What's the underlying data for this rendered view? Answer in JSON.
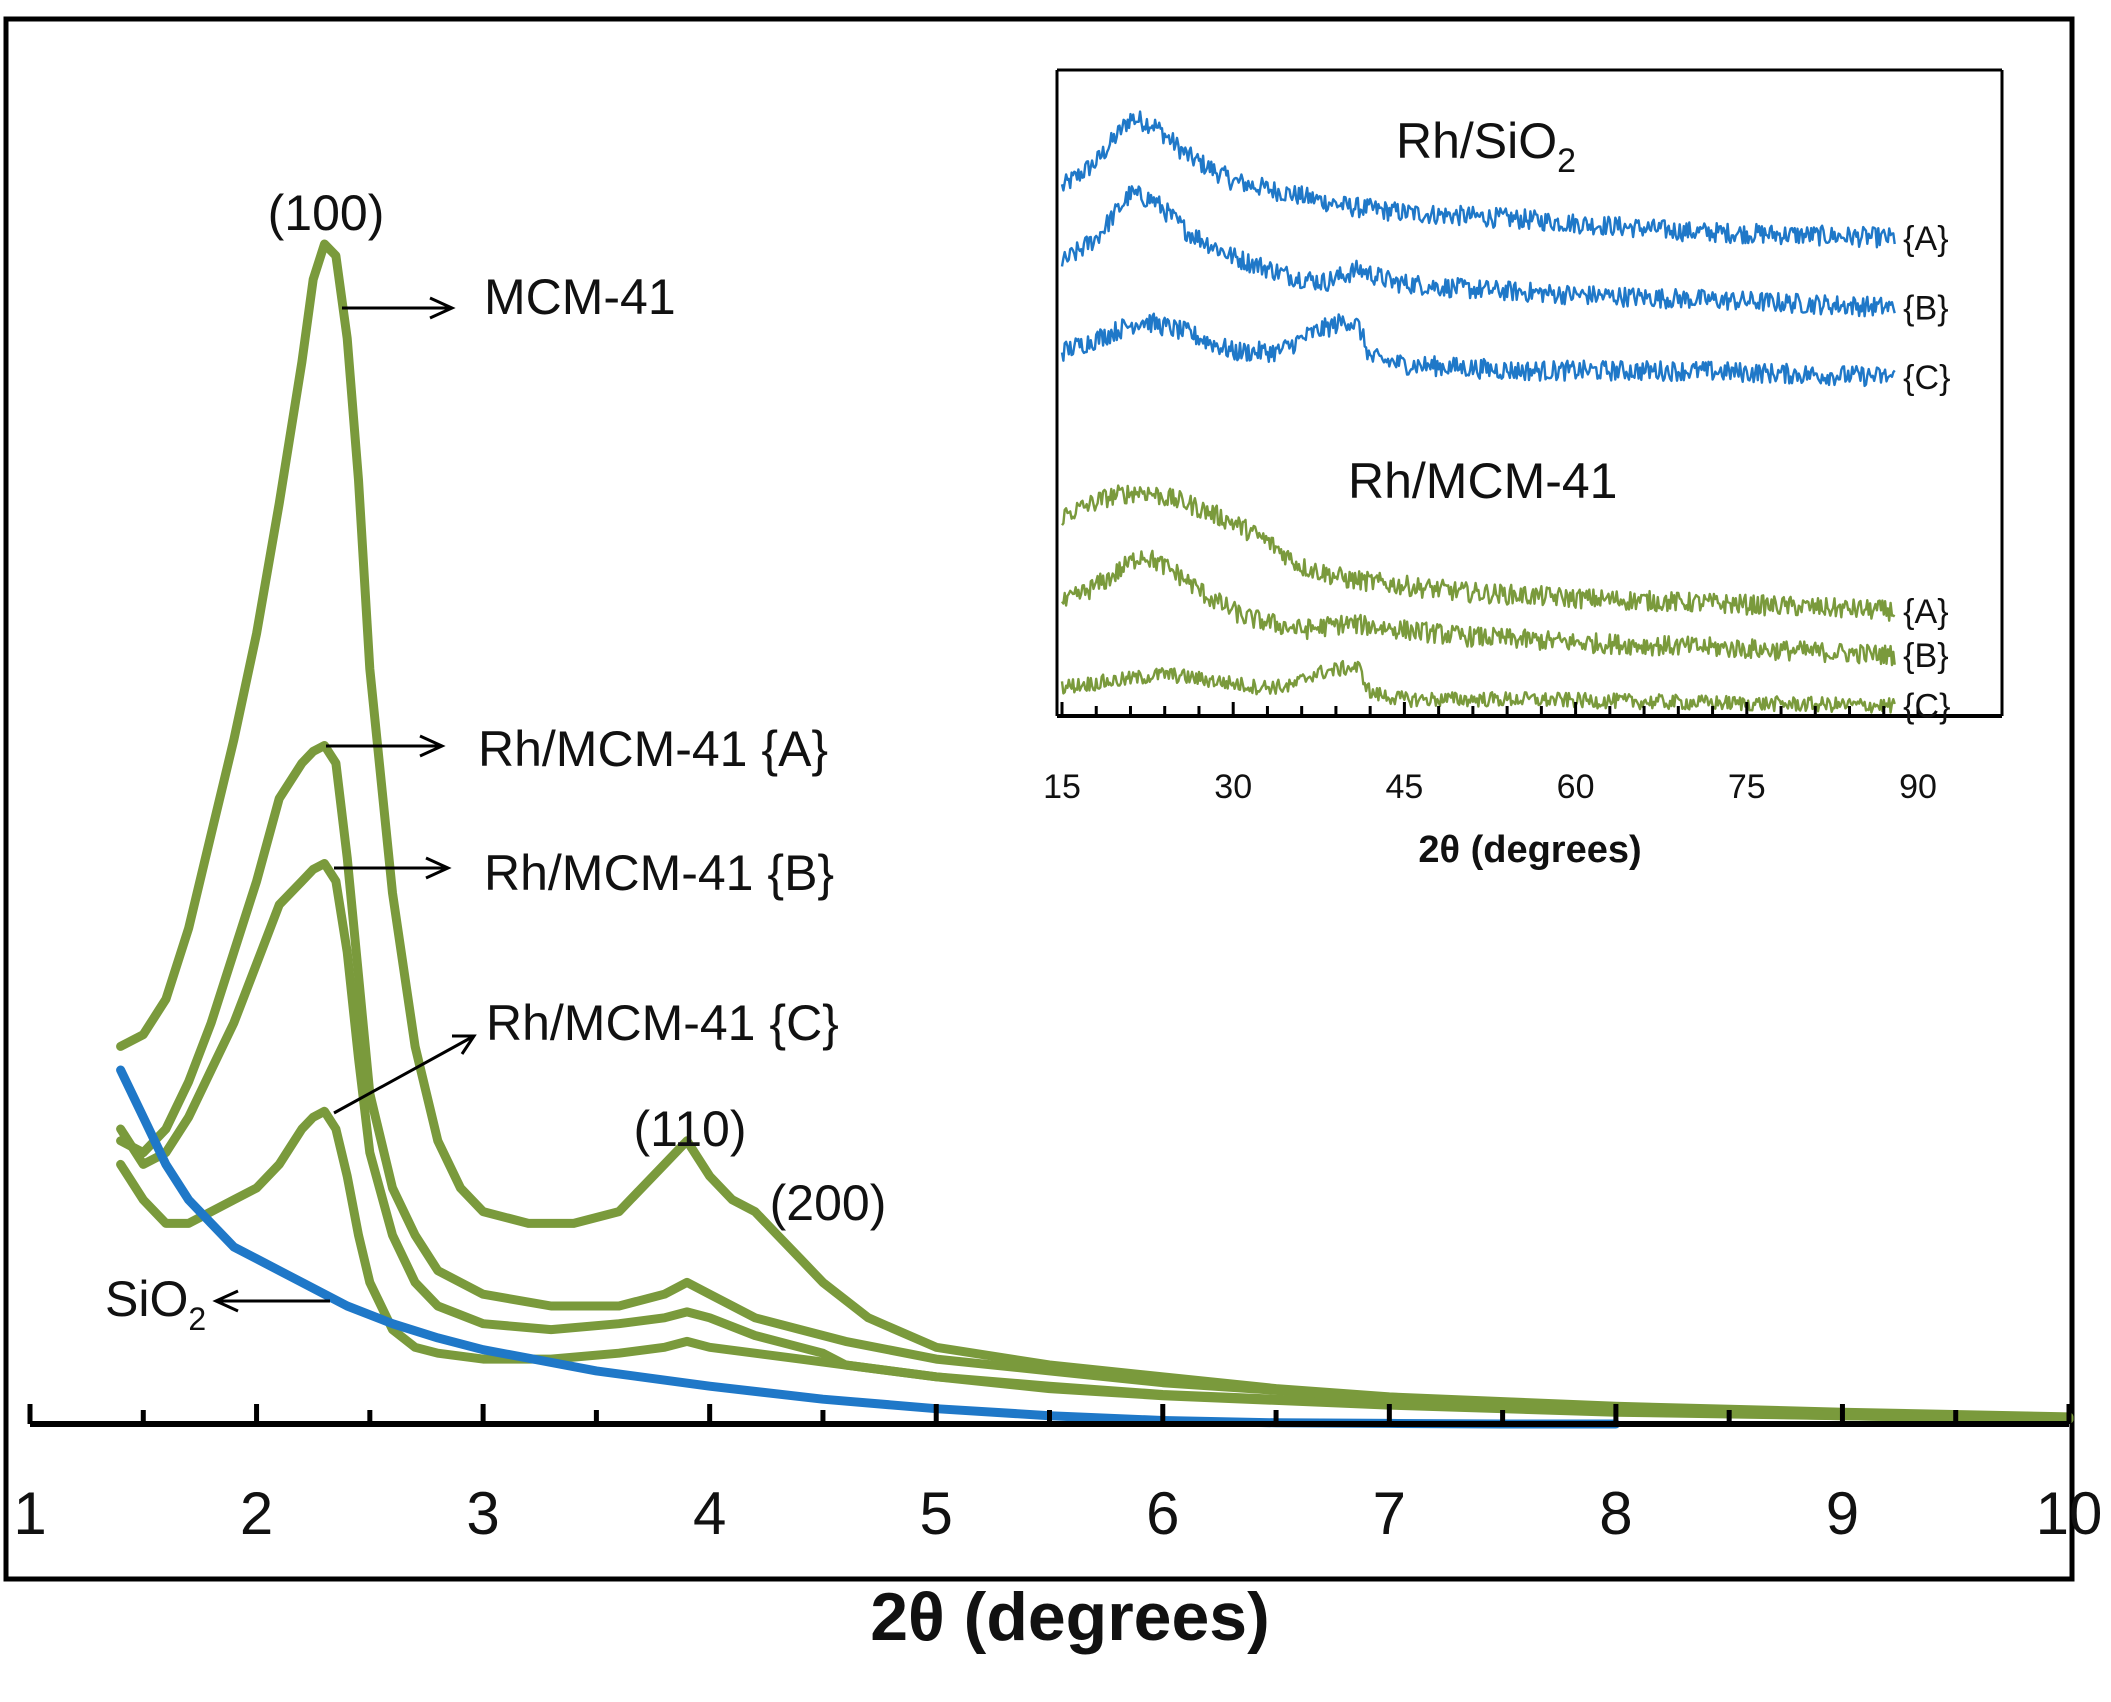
{
  "colors": {
    "mcm": "#7a9a3c",
    "silica": "#1f78c8",
    "axis": "#000000",
    "text": "#111111"
  },
  "chart_data": [
    {
      "type": "line",
      "panel": "main",
      "title": "",
      "xlabel": "2θ (degrees)",
      "ylabel": "",
      "xlim": [
        1,
        10
      ],
      "ylim": [
        0,
        100
      ],
      "xticks": [
        "1",
        "2",
        "3",
        "4",
        "5",
        "6",
        "7",
        "8",
        "9",
        "10"
      ],
      "series": [
        {
          "name": "MCM-41",
          "color": "#7a9a3c",
          "x": [
            1.4,
            1.5,
            1.6,
            1.7,
            1.8,
            1.9,
            2.0,
            2.1,
            2.2,
            2.25,
            2.3,
            2.35,
            2.4,
            2.45,
            2.5,
            2.6,
            2.7,
            2.8,
            2.9,
            3.0,
            3.2,
            3.4,
            3.6,
            3.7,
            3.8,
            3.9,
            4.0,
            4.1,
            4.2,
            4.3,
            4.4,
            4.5,
            4.7,
            5.0,
            5.5,
            6.0,
            6.5,
            7.0,
            8.0,
            9.0,
            10.0
          ],
          "y": [
            32,
            33,
            36,
            42,
            50,
            58,
            67,
            78,
            90,
            97,
            100,
            99,
            92,
            80,
            64,
            45,
            32,
            24,
            20,
            18,
            17,
            17,
            18,
            20,
            22,
            24,
            21,
            19,
            18,
            16,
            14,
            12,
            9,
            6.5,
            5,
            4,
            3,
            2.3,
            1.5,
            1.0,
            0.6
          ]
        },
        {
          "name": "Rh/MCM-41 {A}",
          "color": "#7a9a3c",
          "x": [
            1.4,
            1.5,
            1.6,
            1.7,
            1.8,
            1.9,
            2.0,
            2.1,
            2.2,
            2.25,
            2.3,
            2.35,
            2.4,
            2.45,
            2.5,
            2.6,
            2.7,
            2.8,
            3.0,
            3.3,
            3.6,
            3.8,
            3.9,
            4.0,
            4.2,
            4.4,
            4.6,
            5.0,
            5.5,
            6.0,
            7.0,
            8.0,
            9.0,
            10.0
          ],
          "y": [
            24,
            23,
            25,
            29,
            34,
            40,
            46,
            53,
            56,
            57,
            57.5,
            56,
            48,
            38,
            28,
            20,
            16,
            13,
            11,
            10,
            10,
            11,
            12,
            11,
            9,
            8,
            7,
            5.5,
            4.5,
            3.5,
            2.2,
            1.4,
            0.9,
            0.5
          ]
        },
        {
          "name": "Rh/MCM-41 {B}",
          "color": "#7a9a3c",
          "x": [
            1.4,
            1.5,
            1.6,
            1.7,
            1.8,
            1.9,
            2.0,
            2.1,
            2.2,
            2.25,
            2.3,
            2.35,
            2.4,
            2.45,
            2.5,
            2.6,
            2.7,
            2.8,
            3.0,
            3.3,
            3.6,
            3.8,
            3.9,
            4.0,
            4.2,
            4.4,
            4.5,
            4.6,
            5.0,
            5.5,
            6.0,
            7.0,
            8.0,
            9.0,
            10.0
          ],
          "y": [
            25,
            22,
            23,
            26,
            30,
            34,
            39,
            44,
            46,
            47,
            47.5,
            46,
            40,
            31,
            23,
            16,
            12,
            10,
            8.5,
            8,
            8.5,
            9,
            9.5,
            9,
            7.5,
            6.5,
            6,
            5,
            4,
            3.2,
            2.5,
            1.7,
            1.1,
            0.7,
            0.4
          ]
        },
        {
          "name": "Rh/MCM-41 {C}",
          "color": "#7a9a3c",
          "x": [
            1.4,
            1.5,
            1.6,
            1.7,
            1.8,
            1.9,
            2.0,
            2.1,
            2.2,
            2.25,
            2.3,
            2.35,
            2.4,
            2.45,
            2.5,
            2.6,
            2.7,
            2.8,
            3.0,
            3.3,
            3.6,
            3.8,
            3.9,
            4.0,
            4.2,
            4.4,
            4.6,
            5.0,
            5.5,
            6.0,
            7.0,
            8.0,
            9.0,
            10.0
          ],
          "y": [
            22,
            19,
            17,
            17,
            18,
            19,
            20,
            22,
            25,
            26,
            26.5,
            25,
            21,
            16,
            12,
            8,
            6.5,
            6,
            5.5,
            5.5,
            6,
            6.5,
            7,
            6.5,
            6,
            5.5,
            5,
            4,
            3,
            2.4,
            1.6,
            1.0,
            0.7,
            0.4
          ]
        },
        {
          "name": "SiO2",
          "color": "#1f78c8",
          "x": [
            1.4,
            1.5,
            1.6,
            1.7,
            1.8,
            1.9,
            2.0,
            2.2,
            2.4,
            2.6,
            2.8,
            3.0,
            3.5,
            4.0,
            4.5,
            5.0,
            5.5,
            6.0,
            6.5,
            7.0,
            7.5,
            8.0
          ],
          "y": [
            30,
            26,
            22,
            19,
            17,
            15,
            14,
            12,
            10,
            8.5,
            7.3,
            6.3,
            4.5,
            3.2,
            2.1,
            1.3,
            0.7,
            0.3,
            0.1,
            0.05,
            0,
            0
          ]
        }
      ],
      "annotations": [
        {
          "text": "(100)",
          "role": "reflection index"
        },
        {
          "text": "(110)",
          "role": "reflection index"
        },
        {
          "text": "(200)",
          "role": "reflection index"
        },
        {
          "text": "MCM-41",
          "role": "series label"
        },
        {
          "text": "Rh/MCM-41 {A}",
          "role": "series label"
        },
        {
          "text": "Rh/MCM-41 {B}",
          "role": "series label"
        },
        {
          "text": "Rh/MCM-41 {C}",
          "role": "series label"
        }
      ],
      "sio2_label": {
        "base": "SiO",
        "sub": "2"
      }
    },
    {
      "type": "line",
      "panel": "inset",
      "title": "",
      "xlabel": "2θ (degrees)",
      "ylabel": "",
      "xlim": [
        15,
        95
      ],
      "ylim": [
        0,
        100
      ],
      "xticks": [
        "15",
        "30",
        "45",
        "60",
        "75",
        "90"
      ],
      "group_labels": [
        {
          "base": "Rh/SiO",
          "sub": "2"
        },
        {
          "base": "Rh/MCM-41",
          "sub": ""
        }
      ],
      "series": [
        {
          "name": "Rh/SiO2 {A}",
          "label": "{A}",
          "color": "#1f78c8",
          "noise": 1.6,
          "x": [
            15,
            18,
            21,
            23,
            26,
            30,
            35,
            40,
            45,
            55,
            70,
            88
          ],
          "y": [
            83,
            87,
            94,
            93,
            88,
            84,
            82,
            80,
            79,
            78,
            76,
            75
          ]
        },
        {
          "name": "Rh/SiO2 {B}",
          "label": "{B}",
          "color": "#1f78c8",
          "noise": 1.6,
          "x": [
            15,
            18,
            21,
            23,
            26,
            30,
            35,
            38,
            41,
            44,
            50,
            60,
            75,
            88
          ],
          "y": [
            71,
            75,
            82,
            81,
            76,
            72,
            69,
            68,
            70,
            68,
            67,
            66,
            65,
            64
          ]
        },
        {
          "name": "Rh/SiO2 {C}",
          "label": "{C}",
          "color": "#1f78c8",
          "noise": 1.6,
          "x": [
            15,
            18,
            22,
            26,
            30,
            34,
            37,
            40,
            41,
            42,
            45,
            55,
            70,
            88
          ],
          "y": [
            57,
            59,
            62,
            60,
            57,
            57,
            60,
            62,
            61,
            56,
            55,
            54,
            54,
            53
          ]
        },
        {
          "name": "Rh/MCM-41 {A}",
          "label": "{A}",
          "color": "#7a9a3c",
          "noise": 1.6,
          "x": [
            15,
            19,
            22,
            26,
            30,
            33,
            36,
            40,
            45,
            50,
            60,
            75,
            88
          ],
          "y": [
            31,
            34,
            35,
            33,
            30,
            27,
            23,
            21,
            20,
            19,
            18,
            17,
            16
          ]
        },
        {
          "name": "Rh/MCM-41 {B}",
          "label": "{B}",
          "color": "#7a9a3c",
          "noise": 1.6,
          "x": [
            15,
            19,
            22,
            25,
            28,
            31,
            36,
            40,
            45,
            50,
            60,
            75,
            88
          ],
          "y": [
            17,
            21,
            25,
            22,
            18,
            15,
            13,
            14,
            13,
            12,
            11,
            10,
            9
          ]
        },
        {
          "name": "Rh/MCM-41 {C}",
          "label": "{C}",
          "color": "#7a9a3c",
          "noise": 1.2,
          "x": [
            15,
            20,
            24,
            28,
            32,
            35,
            37,
            40,
            41,
            42,
            45,
            55,
            70,
            88
          ],
          "y": [
            4,
            5,
            6,
            5,
            4,
            4,
            6,
            7,
            7,
            3,
            2,
            2,
            1.5,
            1
          ]
        }
      ]
    }
  ]
}
